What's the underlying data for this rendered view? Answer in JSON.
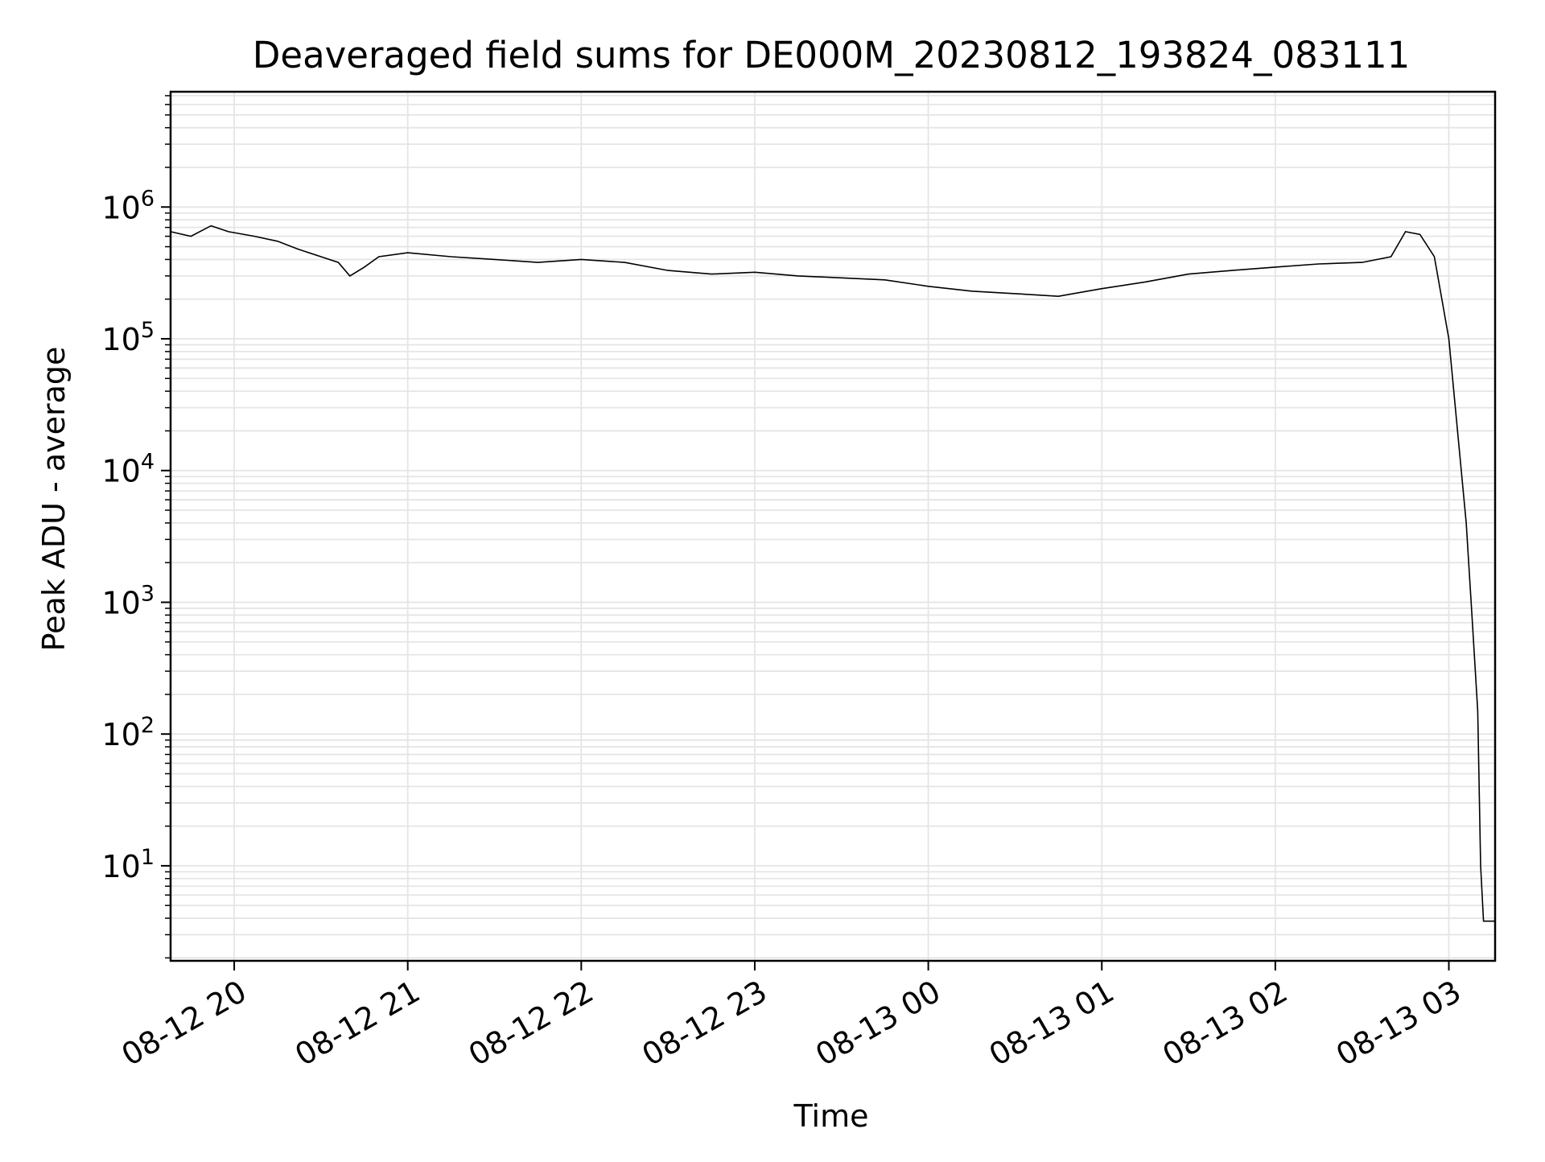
{
  "chart_data": {
    "type": "line",
    "title": "Deaveraged field sums for DE000M_20230812_193824_083111",
    "xlabel": "Time",
    "ylabel": "Peak ADU - average",
    "yscale": "log",
    "grid": true,
    "line_color": "#000000",
    "grid_color": "#e5e5e5",
    "xlim": [
      "2023-08-12 19:38",
      "2023-08-13 03:16"
    ],
    "ylim": [
      1.9,
      7500000
    ],
    "x_ticks": [
      "08-12 20",
      "08-12 21",
      "08-12 22",
      "08-12 23",
      "08-13 00",
      "08-13 01",
      "08-13 02",
      "08-13 03"
    ],
    "x_tick_values": [
      "2023-08-12 20:00",
      "2023-08-12 21:00",
      "2023-08-12 22:00",
      "2023-08-12 23:00",
      "2023-08-13 00:00",
      "2023-08-13 01:00",
      "2023-08-13 02:00",
      "2023-08-13 03:00"
    ],
    "y_ticks": [
      {
        "value": 10,
        "base": "10",
        "exp": "1"
      },
      {
        "value": 100,
        "base": "10",
        "exp": "2"
      },
      {
        "value": 1000,
        "base": "10",
        "exp": "3"
      },
      {
        "value": 10000,
        "base": "10",
        "exp": "4"
      },
      {
        "value": 100000,
        "base": "10",
        "exp": "5"
      },
      {
        "value": 1000000,
        "base": "10",
        "exp": "6"
      }
    ],
    "series": [
      {
        "x": [
          "2023-08-12 19:38",
          "2023-08-12 19:45",
          "2023-08-12 19:52",
          "2023-08-12 19:58",
          "2023-08-12 20:07",
          "2023-08-12 20:15",
          "2023-08-12 20:22",
          "2023-08-12 20:30",
          "2023-08-12 20:36",
          "2023-08-12 20:40",
          "2023-08-12 20:45",
          "2023-08-12 20:50",
          "2023-08-12 21:00",
          "2023-08-12 21:15",
          "2023-08-12 21:30",
          "2023-08-12 21:45",
          "2023-08-12 22:00",
          "2023-08-12 22:15",
          "2023-08-12 22:30",
          "2023-08-12 22:45",
          "2023-08-12 23:00",
          "2023-08-12 23:15",
          "2023-08-12 23:30",
          "2023-08-12 23:45",
          "2023-08-13 00:00",
          "2023-08-13 00:15",
          "2023-08-13 00:30",
          "2023-08-13 00:45",
          "2023-08-13 01:00",
          "2023-08-13 01:15",
          "2023-08-13 01:30",
          "2023-08-13 01:45",
          "2023-08-13 02:00",
          "2023-08-13 02:15",
          "2023-08-13 02:30",
          "2023-08-13 02:40",
          "2023-08-13 02:45",
          "2023-08-13 02:50",
          "2023-08-13 02:55",
          "2023-08-13 03:00",
          "2023-08-13 03:03",
          "2023-08-13 03:06",
          "2023-08-13 03:08",
          "2023-08-13 03:10",
          "2023-08-13 03:11",
          "2023-08-13 03:12",
          "2023-08-13 03:16"
        ],
        "y": [
          650000,
          600000,
          720000,
          650000,
          600000,
          550000,
          480000,
          420000,
          380000,
          300000,
          350000,
          420000,
          450000,
          420000,
          400000,
          380000,
          400000,
          380000,
          330000,
          310000,
          320000,
          300000,
          290000,
          280000,
          250000,
          230000,
          220000,
          210000,
          240000,
          270000,
          310000,
          330000,
          350000,
          370000,
          380000,
          420000,
          650000,
          620000,
          420000,
          100000,
          20000,
          4000,
          800,
          150,
          10,
          3.8,
          3.8
        ]
      }
    ]
  }
}
